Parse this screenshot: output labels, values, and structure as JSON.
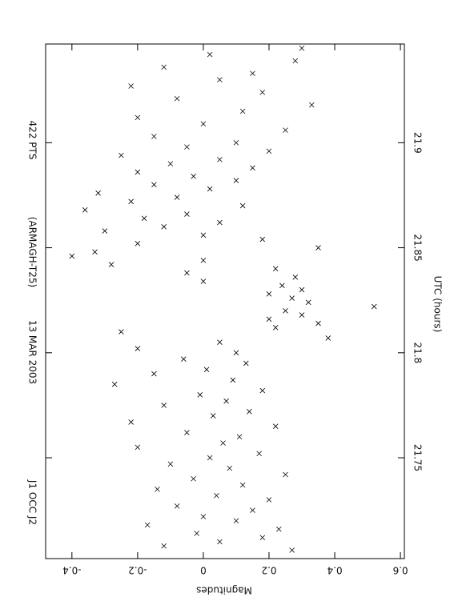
{
  "chart_data": {
    "type": "scatter",
    "annotations": [
      "J1 OCC J2",
      "13 MAR 2003",
      "(ARMAGH-T25)",
      "422 PTS"
    ],
    "x_label": "UTC (hours)",
    "y_label": "Magnitudes",
    "xlim": [
      21.702,
      21.947
    ],
    "xticks": [
      21.75,
      21.8,
      21.85,
      21.9
    ],
    "ylim": [
      -0.48,
      0.612
    ],
    "yticks": [
      -0.4,
      -0.2,
      0,
      0.2,
      0.4,
      0.6
    ],
    "color": "#000000",
    "x": [
      21.706,
      21.708,
      21.71,
      21.712,
      21.714,
      21.716,
      21.718,
      21.72,
      21.722,
      21.725,
      21.727,
      21.73,
      21.732,
      21.735,
      21.737,
      21.74,
      21.742,
      21.745,
      21.747,
      21.75,
      21.752,
      21.755,
      21.757,
      21.76,
      21.762,
      21.765,
      21.767,
      21.77,
      21.772,
      21.775,
      21.777,
      21.78,
      21.782,
      21.785,
      21.787,
      21.79,
      21.792,
      21.795,
      21.797,
      21.8,
      21.802,
      21.805,
      21.807,
      21.81,
      21.812,
      21.814,
      21.816,
      21.818,
      21.82,
      21.822,
      21.824,
      21.826,
      21.828,
      21.83,
      21.832,
      21.834,
      21.836,
      21.838,
      21.84,
      21.842,
      21.844,
      21.846,
      21.848,
      21.85,
      21.852,
      21.854,
      21.856,
      21.858,
      21.86,
      21.862,
      21.864,
      21.866,
      21.868,
      21.87,
      21.872,
      21.874,
      21.876,
      21.878,
      21.88,
      21.882,
      21.884,
      21.886,
      21.888,
      21.89,
      21.892,
      21.894,
      21.896,
      21.898,
      21.9,
      21.903,
      21.906,
      21.909,
      21.912,
      21.915,
      21.918,
      21.921,
      21.924,
      21.927,
      21.93,
      21.933,
      21.936,
      21.939,
      21.942,
      21.945
    ],
    "values": [
      0.27,
      -0.12,
      0.05,
      0.18,
      -0.02,
      0.23,
      -0.17,
      0.1,
      0.0,
      0.15,
      -0.08,
      0.2,
      0.04,
      -0.14,
      0.12,
      -0.03,
      0.25,
      0.08,
      -0.1,
      0.02,
      0.17,
      -0.2,
      0.06,
      0.11,
      -0.05,
      0.22,
      -0.22,
      0.03,
      0.14,
      -0.12,
      0.07,
      -0.01,
      0.18,
      -0.27,
      0.09,
      -0.15,
      0.01,
      0.13,
      -0.06,
      0.1,
      -0.2,
      0.05,
      0.38,
      -0.25,
      0.22,
      0.35,
      0.2,
      0.3,
      0.25,
      0.52,
      0.32,
      0.27,
      0.2,
      0.3,
      0.24,
      0.0,
      0.28,
      -0.05,
      0.22,
      -0.28,
      0.0,
      -0.4,
      -0.33,
      0.35,
      -0.2,
      0.18,
      0.0,
      -0.3,
      -0.12,
      0.05,
      -0.18,
      -0.05,
      -0.36,
      0.12,
      -0.22,
      -0.08,
      -0.32,
      0.02,
      -0.15,
      0.1,
      -0.03,
      -0.2,
      0.15,
      -0.1,
      0.05,
      -0.25,
      0.2,
      -0.05,
      0.1,
      -0.15,
      0.25,
      0.0,
      -0.2,
      0.12,
      0.33,
      -0.08,
      0.18,
      -0.22,
      0.05,
      0.15,
      -0.12,
      0.28,
      0.02,
      0.3
    ]
  }
}
